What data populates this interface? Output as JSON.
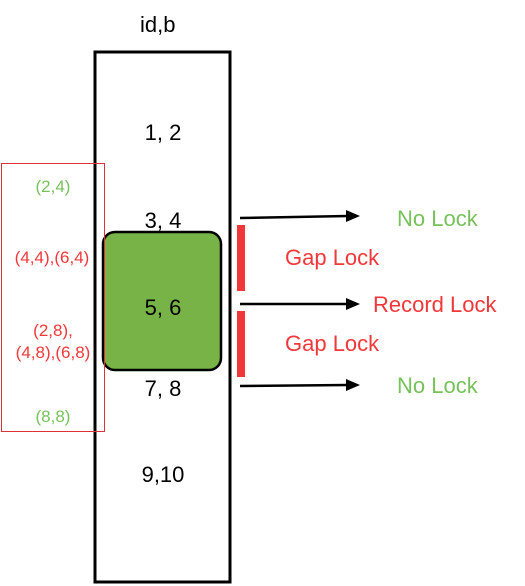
{
  "column": {
    "title": "id,b"
  },
  "rows": [
    "1, 2",
    "3, 4",
    "5, 6",
    "7, 8",
    "9,10"
  ],
  "tuples": [
    {
      "lines": [
        "(2,4)"
      ],
      "color": "#77c15a"
    },
    {
      "lines": [
        "(4,4),(6,4)"
      ],
      "color": "#f2373a"
    },
    {
      "lines": [
        "(2,8),",
        "(4,8),(6,8)"
      ],
      "color": "#f2373a"
    },
    {
      "lines": [
        "(8,8)"
      ],
      "color": "#77c15a"
    }
  ],
  "annotations": {
    "top_no_lock": "No Lock",
    "gap_lock_1": "Gap Lock",
    "record_lock": "Record Lock",
    "gap_lock_2": "Gap Lock",
    "bottom_no_lock": "No Lock"
  },
  "colors": {
    "green_fill": "#77b347",
    "green_text": "#77c15a",
    "red": "#f2373a"
  }
}
